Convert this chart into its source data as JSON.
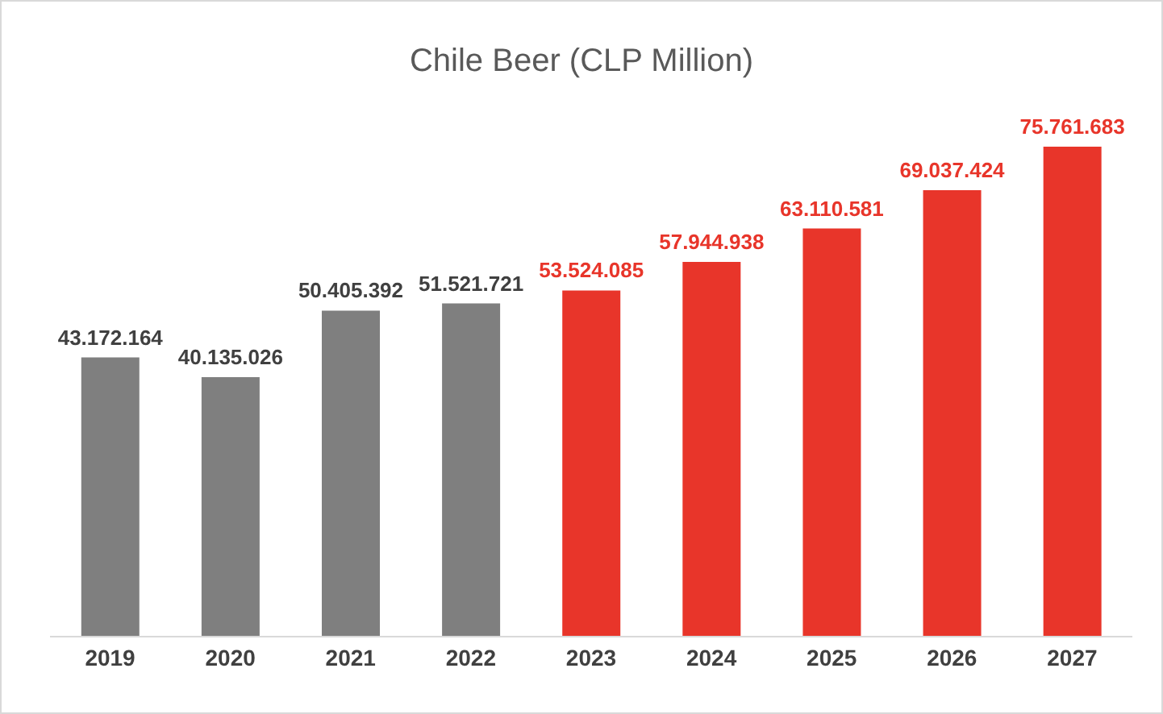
{
  "chart_data": {
    "type": "bar",
    "title": "Chile Beer (CLP Million)",
    "categories": [
      "2019",
      "2020",
      "2021",
      "2022",
      "2023",
      "2024",
      "2025",
      "2026",
      "2027"
    ],
    "values": [
      43172164,
      40135026,
      50405392,
      51521721,
      53524085,
      57944938,
      63110581,
      69037424,
      75761683
    ],
    "colors": [
      "#7f7f7f",
      "#7f7f7f",
      "#7f7f7f",
      "#7f7f7f",
      "#e8352a",
      "#e8352a",
      "#e8352a",
      "#e8352a",
      "#e8352a"
    ],
    "value_labels": [
      "43.172.164",
      "40.135.026",
      "50.405.392",
      "51.521.721",
      "53.524.085",
      "57.944.938",
      "63.110.581",
      "69.037.424",
      "75.761.683"
    ]
  }
}
